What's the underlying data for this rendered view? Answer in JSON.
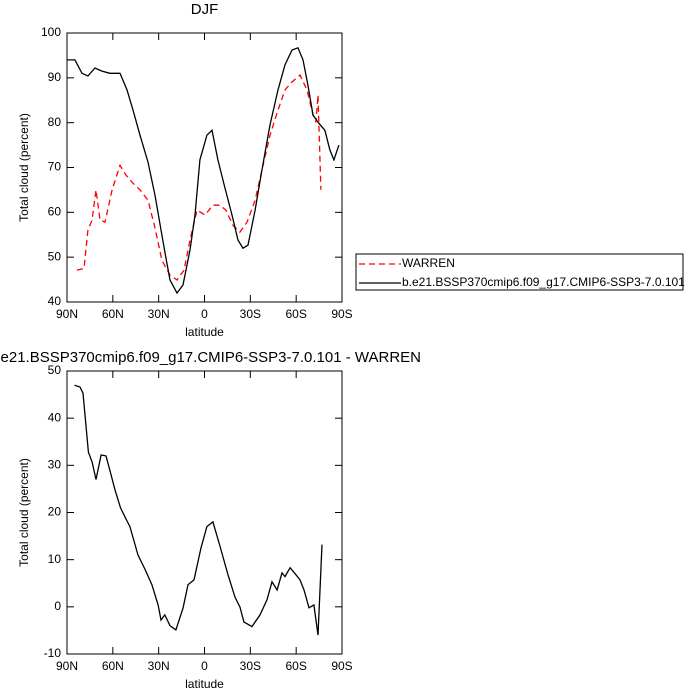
{
  "chart_data": [
    {
      "type": "line",
      "title": "DJF",
      "ylabel": "Total cloud (percent)",
      "xlabel": "latitude",
      "xlim": [
        90,
        -90
      ],
      "ylim": [
        40,
        100
      ],
      "xticks": [
        {
          "value": 90,
          "label": "90N"
        },
        {
          "value": 60,
          "label": "60N"
        },
        {
          "value": 30,
          "label": "30N"
        },
        0,
        {
          "value": -30,
          "label": "30S"
        },
        {
          "value": -60,
          "label": "60S"
        },
        {
          "value": -90,
          "label": "90S"
        }
      ],
      "yticks": [
        40,
        50,
        60,
        70,
        80,
        90,
        100
      ],
      "series": [
        {
          "name": "WARREN",
          "color": "#ff0000",
          "dashed": true,
          "x": [
            83.5,
            78.9,
            76.3,
            73.6,
            71,
            68.4,
            65.1,
            60.5,
            55.3,
            51.4,
            47.4,
            42.2,
            37,
            32.4,
            27.9,
            22.6,
            18,
            13.4,
            9.5,
            4.9,
            -0.3,
            -5.5,
            -10,
            -14,
            -18.6,
            -23.2,
            -27.8,
            -33.1,
            -37.6,
            -42.9,
            -48.1,
            -52.7,
            -57.3,
            -62.5,
            -67.1,
            -71,
            -73,
            -74.3,
            -76.2
          ],
          "values": [
            47.1,
            47.5,
            56,
            58.3,
            65,
            58.3,
            57.8,
            65,
            70.5,
            68.3,
            66.7,
            65,
            62.7,
            56.5,
            49.3,
            46,
            44.9,
            47.1,
            53.8,
            60.5,
            59.4,
            61.6,
            61.6,
            60.5,
            57.1,
            55.6,
            57.8,
            62.7,
            69.4,
            77.2,
            82.8,
            87.3,
            89.1,
            90.6,
            87.3,
            81.7,
            80.1,
            86.2,
            65
          ]
        },
        {
          "name": "b.e21.BSSP370cmip6.f09_g17.CMIP6-SSP3-7.0.101",
          "color": "#000000",
          "dashed": false,
          "x": [
            90,
            84.8,
            80.2,
            76.3,
            71.7,
            67.1,
            61.9,
            55.3,
            50.7,
            46.8,
            42.2,
            37,
            32.4,
            29,
            25.9,
            22.6,
            18,
            14.1,
            9.5,
            6.2,
            3,
            -1.6,
            -4.9,
            -8.8,
            -13.4,
            -18,
            -21.9,
            -25.2,
            -28.5,
            -33.1,
            -37.6,
            -42.9,
            -48.1,
            -52.7,
            -57.3,
            -61.2,
            -64.5,
            -67.7,
            -71,
            -74.3,
            -78.8,
            -82.1,
            -84.7,
            -88
          ],
          "values": [
            94,
            94,
            91,
            90.4,
            92.2,
            91.5,
            91,
            91,
            87.3,
            82.8,
            77.2,
            71.2,
            63.8,
            57.1,
            51.1,
            44.9,
            42,
            43.8,
            51.6,
            59.4,
            71.7,
            77.2,
            78.3,
            71.7,
            65.4,
            59.4,
            53.8,
            52,
            52.7,
            60.5,
            69.4,
            79.5,
            87.3,
            92.9,
            96.2,
            96.7,
            94,
            88.4,
            81.7,
            80.1,
            78.3,
            73.9,
            71.7,
            75
          ]
        }
      ]
    },
    {
      "type": "line",
      "title": "b.e21.BSSP370cmip6.f09_g17.CMIP6-SSP3-7.0.101 - WARREN",
      "ylabel": "Total cloud (percent)",
      "xlabel": "latitude",
      "xlim": [
        90,
        -90
      ],
      "ylim": [
        -10,
        50
      ],
      "xticks": [
        {
          "value": 90,
          "label": "90N"
        },
        {
          "value": 60,
          "label": "60N"
        },
        {
          "value": 30,
          "label": "30N"
        },
        0,
        {
          "value": -30,
          "label": "30S"
        },
        {
          "value": -60,
          "label": "60S"
        },
        {
          "value": -90,
          "label": "90S"
        }
      ],
      "yticks": [
        -10,
        0,
        10,
        20,
        30,
        40,
        50
      ],
      "series": [
        {
          "color": "#000000",
          "dashed": false,
          "x": [
            85,
            81.5,
            79.5,
            76,
            73.6,
            71,
            67.7,
            64.5,
            62,
            58.6,
            55,
            52,
            48.8,
            43.5,
            39,
            34.4,
            30.4,
            28.5,
            26,
            22.6,
            18.7,
            14,
            10.8,
            6.9,
            2.3,
            -1.6,
            -5.5,
            -10,
            -15.4,
            -20,
            -23.2,
            -25.8,
            -31,
            -36.3,
            -40.9,
            -44.2,
            -47.5,
            -50.7,
            -52.7,
            -56,
            -59.9,
            -62.5,
            -65.1,
            -68.4,
            -71.6,
            -74.3,
            -76.9
          ],
          "values": [
            47,
            46.6,
            45.3,
            32.8,
            30.7,
            27,
            32.2,
            32,
            29,
            24.8,
            21,
            19,
            17,
            11,
            8,
            4.7,
            0.4,
            -2.8,
            -1.7,
            -4,
            -4.9,
            -0.2,
            4.7,
            5.7,
            12.5,
            17,
            18,
            13,
            6.8,
            2,
            0,
            -3.2,
            -4.2,
            -1.7,
            1.5,
            5.3,
            3.6,
            7.2,
            6.4,
            8.3,
            6.8,
            5.7,
            3.6,
            -0.2,
            0.4,
            -6,
            13.2
          ]
        }
      ]
    }
  ]
}
